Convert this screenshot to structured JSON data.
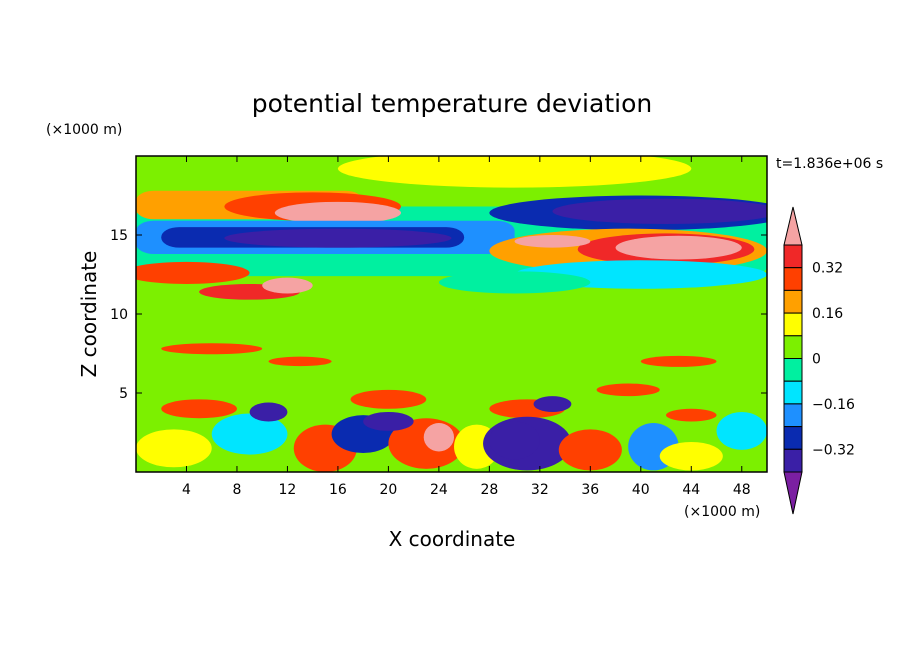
{
  "chart_data": {
    "type": "heatmap",
    "title": "potential temperature deviation",
    "xlabel": "X coordinate",
    "ylabel": "Z coordinate",
    "x_unit": "(×1000 m)",
    "y_unit": "(×1000 m)",
    "time_label": "t=1.836e+06 s",
    "xlim": [
      0,
      50
    ],
    "ylim": [
      0,
      20
    ],
    "x_ticks": [
      4,
      8,
      12,
      16,
      20,
      24,
      28,
      32,
      36,
      40,
      44,
      48
    ],
    "y_ticks": [
      5,
      10,
      15
    ],
    "colorbar": {
      "labels": [
        "0.32",
        "0.16",
        "0",
        "−0.16",
        "−0.32"
      ],
      "label_values": [
        0.32,
        0.16,
        0,
        -0.16,
        -0.32
      ],
      "levels": [
        -0.4,
        -0.32,
        -0.24,
        -0.16,
        -0.08,
        0,
        0.08,
        0.16,
        0.24,
        0.32,
        0.4
      ],
      "colors": [
        "#7b1fa2",
        "#3a1fa6",
        "#0a2bb0",
        "#1e90ff",
        "#00e5ff",
        "#00f0a0",
        "#7cf000",
        "#ffff00",
        "#ffa000",
        "#ff4000",
        "#f02828",
        "#f5a3a3"
      ]
    },
    "features": [
      {
        "desc": "warm band",
        "x": [
          0,
          16
        ],
        "z": [
          16.2,
          17.6
        ],
        "value": 0.24
      },
      {
        "desc": "warm core",
        "x": [
          10,
          20
        ],
        "z": [
          15.8,
          17.2
        ],
        "value": 0.4
      },
      {
        "desc": "cold band",
        "x": [
          0,
          28
        ],
        "z": [
          13.8,
          15.8
        ],
        "value": -0.36
      },
      {
        "desc": "cold band",
        "x": [
          28,
          50
        ],
        "z": [
          15.5,
          17.5
        ],
        "value": -0.36
      },
      {
        "desc": "warm band",
        "x": [
          27,
          50
        ],
        "z": [
          12.8,
          15.3
        ],
        "value": 0.24
      },
      {
        "desc": "warm core",
        "x": [
          38,
          48
        ],
        "z": [
          13.3,
          15.1
        ],
        "value": 0.4
      },
      {
        "desc": "warm filament",
        "x": [
          0,
          10
        ],
        "z": [
          11,
          13.3
        ],
        "value": 0.32
      },
      {
        "desc": "cool band",
        "x": [
          30,
          50
        ],
        "z": [
          11.8,
          13.2
        ],
        "value": -0.08
      },
      {
        "desc": "cold eddies",
        "x": [
          28,
          36
        ],
        "z": [
          0.2,
          3.5
        ],
        "value": -0.36
      },
      {
        "desc": "warm eddies",
        "x": [
          20,
          26
        ],
        "z": [
          0.3,
          3.3
        ],
        "value": 0.32
      }
    ]
  }
}
